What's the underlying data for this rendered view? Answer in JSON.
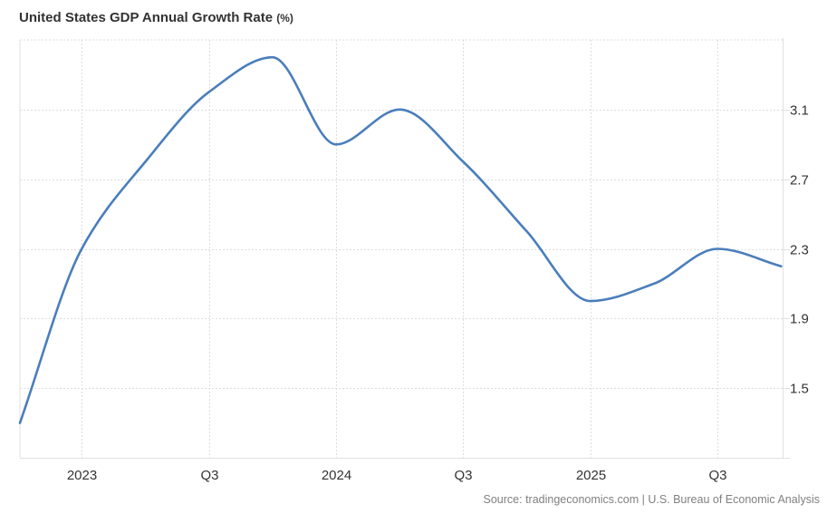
{
  "header": {
    "title": "United States GDP Annual Growth Rate",
    "unit": "(%)"
  },
  "footer": {
    "source": "Source: tradingeconomics.com | U.S. Bureau of Economic Analysis"
  },
  "colors": {
    "line": "#4a7ebb",
    "grid": "#dddddd",
    "axis": "#e0e0e0",
    "text": "#333333",
    "source_text": "#808080"
  },
  "chart_data": {
    "type": "line",
    "title": "United States GDP Annual Growth Rate (%)",
    "xlabel": "",
    "ylabel": "",
    "x": [
      "2022 Q4",
      "2023 Q1",
      "2023 Q2",
      "2023 Q3",
      "2023 Q4",
      "2024 Q1",
      "2024 Q2",
      "2024 Q3",
      "2024 Q4",
      "2025 Q1",
      "2025 Q2",
      "2025 Q3",
      "2025 Q4"
    ],
    "series": [
      {
        "name": "GDP Annual Growth Rate",
        "values": [
          1.3,
          2.3,
          2.8,
          3.2,
          3.4,
          2.9,
          3.1,
          2.8,
          2.4,
          2.0,
          2.1,
          2.3,
          2.2
        ]
      }
    ],
    "ylim": [
      1.1,
      3.5
    ],
    "y_ticks": [
      1.5,
      1.9,
      2.3,
      2.7,
      3.1
    ],
    "y_tick_labels": [
      "1.5",
      "1.9",
      "2.3",
      "2.7",
      "3.1"
    ],
    "y_axis_side": "right",
    "x_ticks": [
      {
        "at": "2023 Q1",
        "label": "2023"
      },
      {
        "at": "2023 Q3",
        "label": "Q3"
      },
      {
        "at": "2024 Q1",
        "label": "2024"
      },
      {
        "at": "2024 Q3",
        "label": "Q3"
      },
      {
        "at": "2025 Q1",
        "label": "2025"
      },
      {
        "at": "2025 Q3",
        "label": "Q3"
      }
    ],
    "grid": true,
    "legend": "none"
  }
}
